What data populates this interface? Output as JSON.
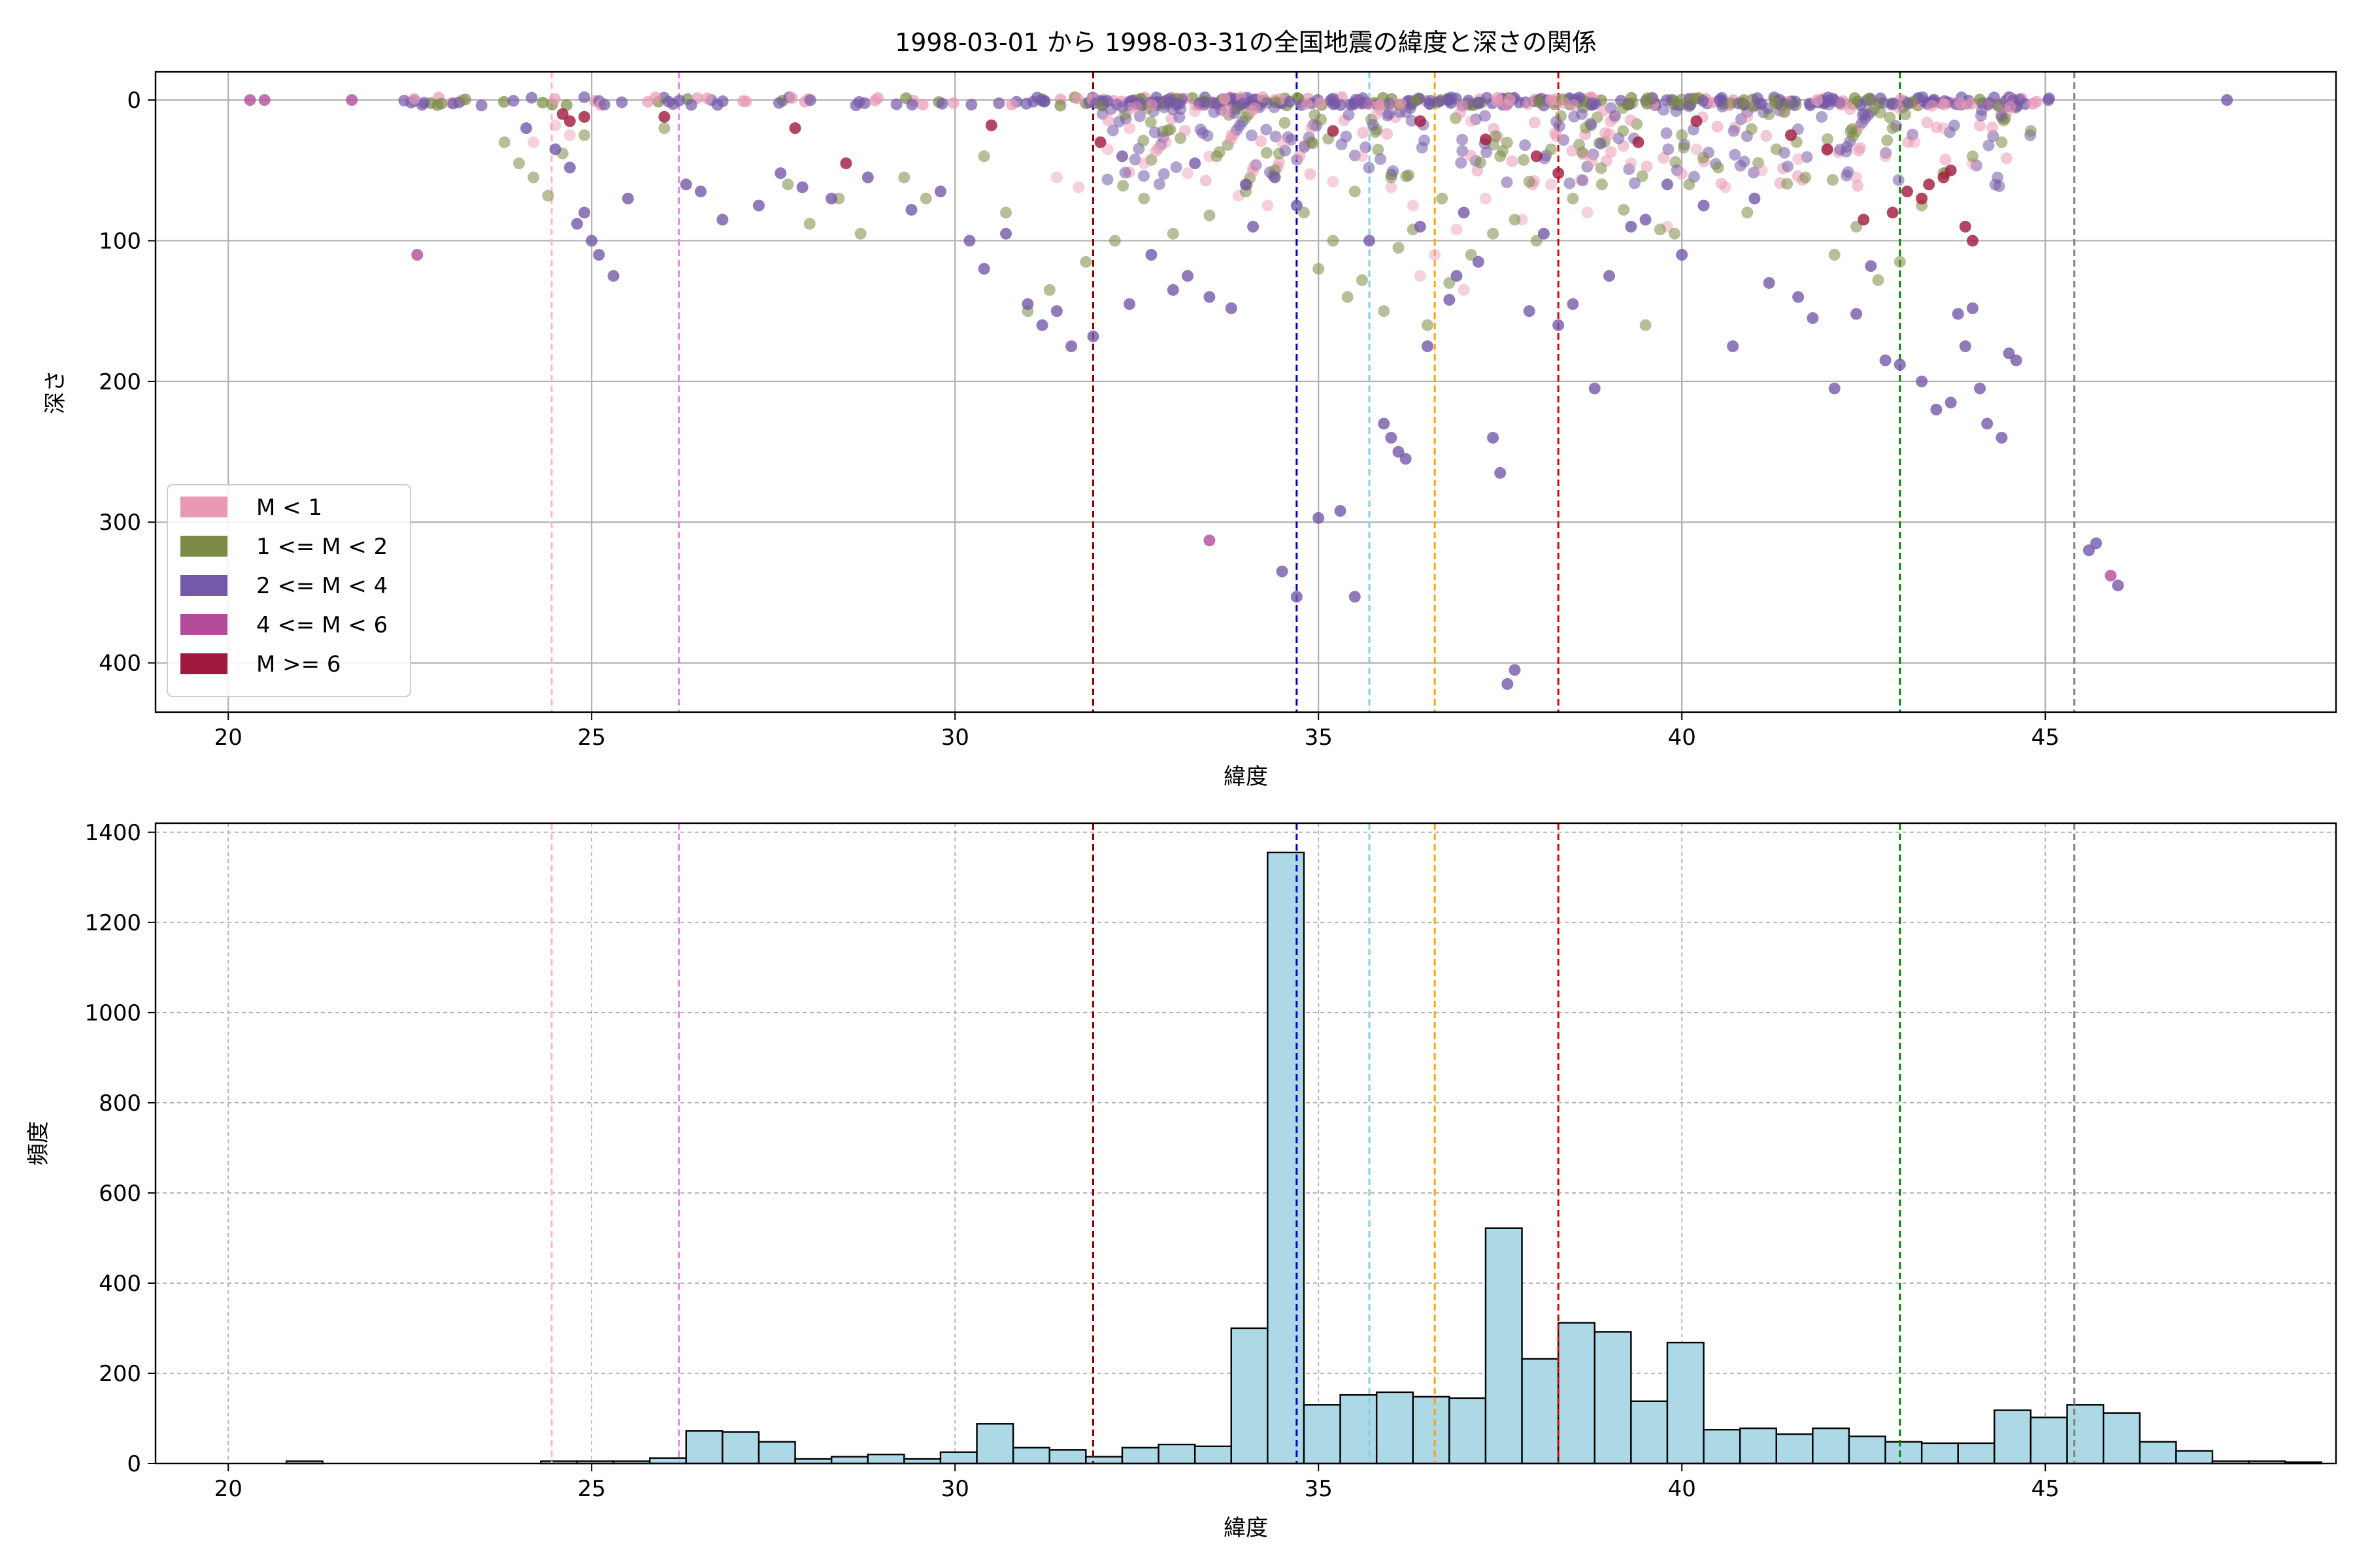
{
  "title": "1998-03-01 から 1998-03-31の全国地震の緯度と深さの関係",
  "colors": {
    "m_lt1": "#e899b5",
    "m_1_2": "#7b8b45",
    "m_2_4": "#7459a8",
    "m_4_6": "#b34c9a",
    "m_ge6": "#a0193c",
    "hist_fill": "#add8e6",
    "hist_edge": "#000000",
    "grid": "#b0b0b0"
  },
  "reference_lines": [
    {
      "x": 24.45,
      "color": "#ffb6c1"
    },
    {
      "x": 26.2,
      "color": "#ee82ee"
    },
    {
      "x": 31.9,
      "color": "#8b0000"
    },
    {
      "x": 34.7,
      "color": "#0000cd"
    },
    {
      "x": 35.7,
      "color": "#87ceeb"
    },
    {
      "x": 36.6,
      "color": "#ffa500"
    },
    {
      "x": 38.3,
      "color": "#e00000"
    },
    {
      "x": 43.0,
      "color": "#008000"
    },
    {
      "x": 45.4,
      "color": "#808080"
    }
  ],
  "chart_data": [
    {
      "type": "scatter",
      "xlabel": "緯度",
      "ylabel": "深さ",
      "xlim": [
        19,
        49
      ],
      "ylim": [
        435,
        -20
      ],
      "y_inverted": true,
      "xticks": [
        20,
        25,
        30,
        35,
        40,
        45
      ],
      "yticks": [
        0,
        100,
        200,
        300,
        400
      ],
      "grid": true,
      "legend_position": "lower-left",
      "legend": [
        {
          "label": "M < 1",
          "key": "m_lt1"
        },
        {
          "label": "1 <= M < 2",
          "key": "m_1_2"
        },
        {
          "label": "2 <= M < 4",
          "key": "m_2_4"
        },
        {
          "label": "4 <= M < 6",
          "key": "m_4_6"
        },
        {
          "label": "M >= 6",
          "key": "m_ge6"
        }
      ],
      "series": [
        {
          "key": "m_lt1",
          "points": [
            [
              24.2,
              30
            ],
            [
              24.5,
              18
            ],
            [
              24.7,
              25
            ],
            [
              31.4,
              55
            ],
            [
              31.7,
              62
            ],
            [
              32.1,
              35
            ],
            [
              32.4,
              20
            ],
            [
              32.6,
              45
            ],
            [
              32.9,
              30
            ],
            [
              33.2,
              52
            ],
            [
              33.5,
              40
            ],
            [
              33.8,
              25
            ],
            [
              34.1,
              48
            ],
            [
              34.5,
              30
            ],
            [
              34.9,
              20
            ],
            [
              35.2,
              58
            ],
            [
              35.6,
              40
            ],
            [
              36.0,
              62
            ],
            [
              36.3,
              75
            ],
            [
              36.6,
              110
            ],
            [
              36.9,
              92
            ],
            [
              37.3,
              70
            ],
            [
              37.8,
              85
            ],
            [
              38.2,
              60
            ],
            [
              38.7,
              80
            ],
            [
              39.3,
              45
            ],
            [
              39.8,
              90
            ],
            [
              40.2,
              35
            ],
            [
              40.6,
              62
            ],
            [
              41.1,
              50
            ],
            [
              41.6,
              42
            ],
            [
              42.0,
              36
            ],
            [
              42.4,
              55
            ],
            [
              42.8,
              40
            ],
            [
              43.2,
              30
            ],
            [
              43.6,
              20
            ],
            [
              44.0,
              45
            ],
            [
              35.8,
              10
            ],
            [
              33.3,
              8
            ],
            [
              32.5,
              5
            ],
            [
              37.1,
              15
            ],
            [
              40.9,
              12
            ],
            [
              36.4,
              125
            ],
            [
              37.0,
              135
            ],
            [
              34.3,
              75
            ],
            [
              33.9,
              68
            ]
          ]
        },
        {
          "key": "m_1_2",
          "points": [
            [
              23.8,
              30
            ],
            [
              24.0,
              45
            ],
            [
              24.2,
              55
            ],
            [
              24.4,
              68
            ],
            [
              24.6,
              38
            ],
            [
              24.9,
              25
            ],
            [
              26.0,
              20
            ],
            [
              27.7,
              60
            ],
            [
              28.0,
              88
            ],
            [
              28.4,
              70
            ],
            [
              28.7,
              95
            ],
            [
              29.3,
              55
            ],
            [
              29.6,
              70
            ],
            [
              30.4,
              40
            ],
            [
              30.7,
              80
            ],
            [
              31.0,
              150
            ],
            [
              31.3,
              135
            ],
            [
              31.8,
              115
            ],
            [
              32.2,
              100
            ],
            [
              32.6,
              70
            ],
            [
              33.0,
              95
            ],
            [
              33.5,
              82
            ],
            [
              34.0,
              65
            ],
            [
              34.4,
              50
            ],
            [
              34.8,
              80
            ],
            [
              35.2,
              100
            ],
            [
              35.4,
              140
            ],
            [
              35.6,
              128
            ],
            [
              35.9,
              150
            ],
            [
              36.1,
              105
            ],
            [
              36.3,
              92
            ],
            [
              36.5,
              160
            ],
            [
              36.8,
              130
            ],
            [
              37.1,
              110
            ],
            [
              37.4,
              95
            ],
            [
              37.7,
              85
            ],
            [
              38.0,
              100
            ],
            [
              38.5,
              70
            ],
            [
              38.9,
              60
            ],
            [
              39.2,
              78
            ],
            [
              39.5,
              160
            ],
            [
              39.7,
              92
            ],
            [
              40.1,
              60
            ],
            [
              40.5,
              48
            ],
            [
              40.9,
              80
            ],
            [
              41.3,
              35
            ],
            [
              41.7,
              55
            ],
            [
              42.1,
              110
            ],
            [
              42.4,
              90
            ],
            [
              42.7,
              128
            ],
            [
              43.0,
              115
            ],
            [
              43.3,
              75
            ],
            [
              43.6,
              52
            ],
            [
              44.0,
              40
            ],
            [
              44.4,
              30
            ],
            [
              44.8,
              22
            ],
            [
              33.6,
              40
            ],
            [
              36.0,
              55
            ],
            [
              37.5,
              40
            ],
            [
              34.9,
              30
            ],
            [
              38.2,
              35
            ],
            [
              40.0,
              25
            ],
            [
              42.9,
              20
            ],
            [
              35.5,
              65
            ],
            [
              36.7,
              70
            ],
            [
              37.9,
              58
            ],
            [
              39.9,
              95
            ],
            [
              35.0,
              120
            ]
          ]
        },
        {
          "key": "m_2_4",
          "points": [
            [
              24.1,
              20
            ],
            [
              24.5,
              35
            ],
            [
              24.7,
              48
            ],
            [
              24.8,
              88
            ],
            [
              24.9,
              80
            ],
            [
              25.0,
              100
            ],
            [
              25.1,
              110
            ],
            [
              25.3,
              125
            ],
            [
              25.5,
              70
            ],
            [
              26.3,
              60
            ],
            [
              26.5,
              65
            ],
            [
              26.8,
              85
            ],
            [
              27.3,
              75
            ],
            [
              27.6,
              52
            ],
            [
              27.9,
              62
            ],
            [
              28.3,
              70
            ],
            [
              28.8,
              55
            ],
            [
              29.4,
              78
            ],
            [
              29.8,
              65
            ],
            [
              30.2,
              100
            ],
            [
              30.4,
              120
            ],
            [
              30.7,
              95
            ],
            [
              31.0,
              145
            ],
            [
              31.2,
              160
            ],
            [
              31.4,
              150
            ],
            [
              31.6,
              175
            ],
            [
              31.9,
              168
            ],
            [
              32.4,
              145
            ],
            [
              32.7,
              110
            ],
            [
              33.0,
              135
            ],
            [
              33.2,
              125
            ],
            [
              33.5,
              140
            ],
            [
              33.8,
              148
            ],
            [
              34.1,
              90
            ],
            [
              34.4,
              55
            ],
            [
              34.7,
              75
            ],
            [
              34.5,
              335
            ],
            [
              34.7,
              353
            ],
            [
              35.0,
              297
            ],
            [
              35.3,
              292
            ],
            [
              35.5,
              353
            ],
            [
              35.9,
              230
            ],
            [
              36.0,
              240
            ],
            [
              36.1,
              250
            ],
            [
              36.2,
              255
            ],
            [
              36.5,
              175
            ],
            [
              36.8,
              142
            ],
            [
              37.2,
              115
            ],
            [
              37.4,
              240
            ],
            [
              37.5,
              265
            ],
            [
              37.6,
              415
            ],
            [
              37.7,
              405
            ],
            [
              37.9,
              150
            ],
            [
              38.3,
              160
            ],
            [
              38.5,
              145
            ],
            [
              38.8,
              205
            ],
            [
              39.0,
              125
            ],
            [
              39.5,
              85
            ],
            [
              39.8,
              60
            ],
            [
              40.3,
              75
            ],
            [
              40.7,
              175
            ],
            [
              41.2,
              130
            ],
            [
              41.6,
              140
            ],
            [
              41.8,
              155
            ],
            [
              42.1,
              205
            ],
            [
              42.4,
              152
            ],
            [
              42.8,
              185
            ],
            [
              43.0,
              188
            ],
            [
              43.3,
              200
            ],
            [
              43.5,
              220
            ],
            [
              43.7,
              215
            ],
            [
              43.9,
              175
            ],
            [
              44.1,
              205
            ],
            [
              44.2,
              230
            ],
            [
              44.4,
              240
            ],
            [
              44.5,
              180
            ],
            [
              44.6,
              185
            ],
            [
              44.0,
              148
            ],
            [
              43.8,
              152
            ],
            [
              45.6,
              320
            ],
            [
              45.7,
              315
            ],
            [
              46.0,
              345
            ],
            [
              47.5,
              0
            ],
            [
              36.4,
              90
            ],
            [
              37.0,
              80
            ],
            [
              35.7,
              100
            ],
            [
              38.1,
              95
            ],
            [
              40.0,
              110
            ],
            [
              39.3,
              90
            ],
            [
              34.0,
              60
            ],
            [
              33.3,
              45
            ],
            [
              32.3,
              40
            ],
            [
              36.9,
              125
            ],
            [
              42.6,
              118
            ],
            [
              41.0,
              70
            ]
          ]
        },
        {
          "key": "m_4_6",
          "points": [
            [
              20.3,
              0
            ],
            [
              20.5,
              0
            ],
            [
              21.7,
              0
            ],
            [
              22.6,
              110
            ],
            [
              33.5,
              313
            ],
            [
              45.9,
              338
            ]
          ]
        },
        {
          "key": "m_ge6",
          "points": [
            [
              24.7,
              15
            ],
            [
              24.9,
              12
            ],
            [
              24.6,
              10
            ],
            [
              27.8,
              20
            ],
            [
              28.5,
              45
            ],
            [
              32.0,
              30
            ],
            [
              36.4,
              15
            ],
            [
              38.0,
              40
            ],
            [
              38.3,
              52
            ],
            [
              39.4,
              30
            ],
            [
              40.2,
              15
            ],
            [
              41.5,
              25
            ],
            [
              42.0,
              35
            ],
            [
              42.5,
              85
            ],
            [
              42.9,
              80
            ],
            [
              43.1,
              65
            ],
            [
              43.3,
              70
            ],
            [
              43.4,
              60
            ],
            [
              43.6,
              55
            ],
            [
              43.7,
              50
            ],
            [
              43.9,
              90
            ],
            [
              44.0,
              100
            ],
            [
              37.3,
              28
            ],
            [
              35.2,
              22
            ],
            [
              30.5,
              18
            ],
            [
              26.0,
              12
            ]
          ]
        }
      ]
    },
    {
      "type": "bar",
      "xlabel": "緯度",
      "ylabel": "頻度",
      "xlim": [
        19,
        49
      ],
      "ylim": [
        0,
        1420
      ],
      "xticks": [
        20,
        25,
        30,
        35,
        40,
        45
      ],
      "yticks": [
        0,
        200,
        400,
        600,
        800,
        1000,
        1200,
        1400
      ],
      "grid": true,
      "bin_start": 19.8,
      "bin_width": 0.5,
      "values": [
        0,
        0,
        5,
        0,
        0,
        0,
        0,
        0,
        0,
        5,
        5,
        5,
        12,
        72,
        70,
        48,
        10,
        15,
        20,
        10,
        25,
        88,
        35,
        30,
        15,
        35,
        42,
        38,
        300,
        1355,
        130,
        152,
        158,
        148,
        145,
        522,
        232,
        312,
        292,
        138,
        268,
        75,
        78,
        65,
        78,
        60,
        48,
        45,
        45,
        118,
        102,
        130,
        112,
        48,
        28,
        5,
        5,
        3,
        0,
        0,
        0,
        0
      ]
    }
  ]
}
